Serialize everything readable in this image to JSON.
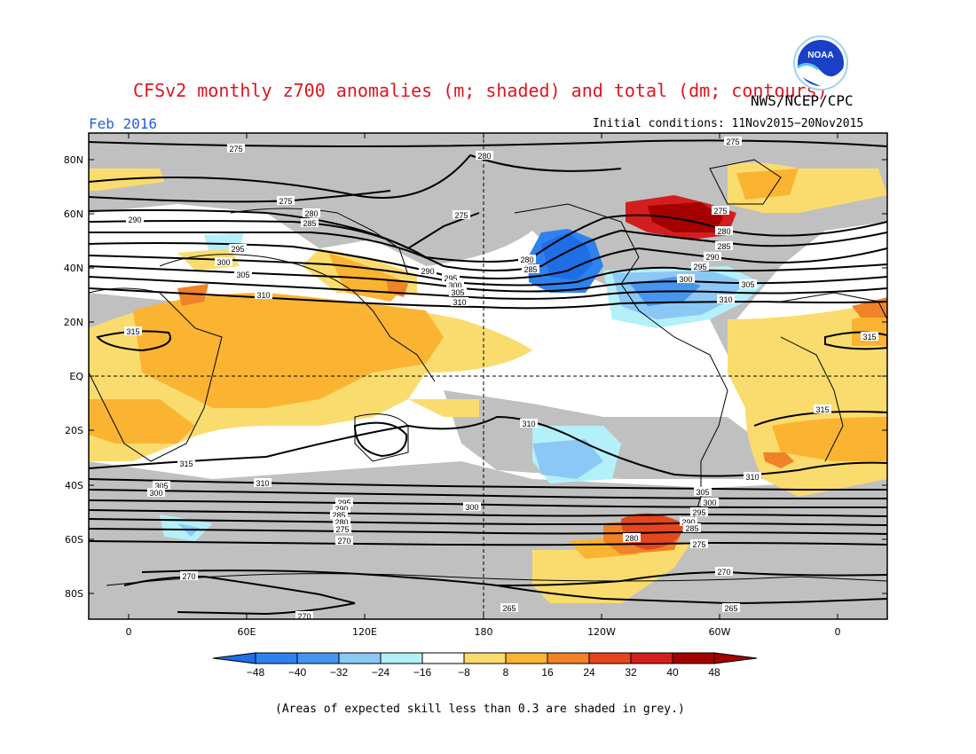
{
  "title": "CFSv2 monthly z700 anomalies (m; shaded) and total (dm; contours)",
  "agency": "NWS/NCEP/CPC",
  "logo_text": "NOAA",
  "period": "Feb 2016",
  "initial_conditions": "Initial conditions: 11Nov2015−20Nov2015",
  "footnote": "(Areas of expected skill less than 0.3 are shaded in grey.)",
  "colors": {
    "grey_low_skill": "#c0c0c0",
    "neg48": "#1e6ee6",
    "neg40": "#2d82f0",
    "neg32": "#4696f0",
    "neg24": "#8cc8f5",
    "neg16": "#b4f0fa",
    "neg8": "#ffffff",
    "pos8": "#fadc6e",
    "pos16": "#fab432",
    "pos24": "#f08228",
    "pos32": "#e6461e",
    "pos40": "#d21e1e",
    "pos48": "#a50000",
    "title": "#e0141e",
    "period": "#1f5fe0"
  },
  "map": {
    "lat_labels": [
      "80N",
      "60N",
      "40N",
      "20N",
      "EQ",
      "20S",
      "40S",
      "60S",
      "80S"
    ],
    "lon_labels": [
      "0",
      "60E",
      "120E",
      "180",
      "120W",
      "60W",
      "0"
    ],
    "contour_labels": [
      "275",
      "280",
      "275",
      "290",
      "280",
      "285",
      "275",
      "295",
      "300",
      "305",
      "310",
      "290",
      "295",
      "300",
      "305",
      "310",
      "280",
      "285",
      "275",
      "280",
      "285",
      "290",
      "295",
      "300",
      "305",
      "310",
      "275",
      "315",
      "315",
      "315",
      "310",
      "315",
      "310",
      "305",
      "300",
      "310",
      "295",
      "290",
      "285",
      "280",
      "275",
      "270",
      "300",
      "305",
      "300",
      "295",
      "290",
      "285",
      "275",
      "280",
      "270",
      "270",
      "265",
      "265",
      "270"
    ]
  },
  "colorbar": {
    "ticks": [
      "−48",
      "−40",
      "−32",
      "−24",
      "−16",
      "−8",
      "8",
      "16",
      "24",
      "32",
      "40",
      "48"
    ]
  }
}
